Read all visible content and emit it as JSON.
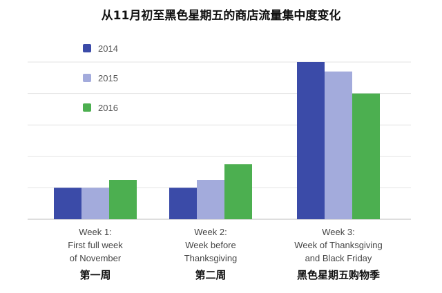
{
  "chart_data": {
    "type": "bar",
    "title": "从11月初至黑色星期五的商店流量集中度变化",
    "categories": [
      {
        "lines": [
          "Week 1:",
          "First full week",
          "of November"
        ],
        "cn": "第一周"
      },
      {
        "lines": [
          "Week 2:",
          "Week before",
          "Thanksgiving"
        ],
        "cn": "第二周"
      },
      {
        "lines": [
          "Week 3:",
          "Week of Thanksgiving",
          "and Black Friday"
        ],
        "cn": "黑色星期五购物季"
      }
    ],
    "series": [
      {
        "name": "2014",
        "color": "#3b4ba8",
        "values": [
          10,
          10,
          50
        ]
      },
      {
        "name": "2015",
        "color": "#a3abdc",
        "values": [
          10,
          12.5,
          47
        ]
      },
      {
        "name": "2016",
        "color": "#4caf50",
        "values": [
          12.5,
          17.5,
          40
        ]
      }
    ],
    "ylim": [
      0,
      50
    ],
    "grid": true,
    "legend": "top-left",
    "xlabel": "",
    "ylabel": ""
  }
}
